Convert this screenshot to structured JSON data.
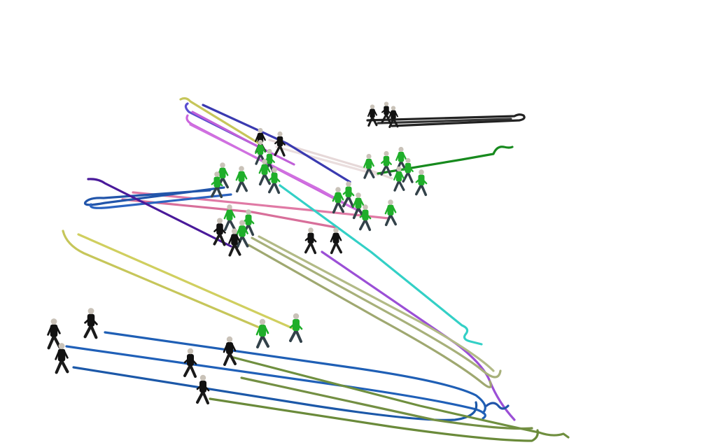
{
  "scene": {
    "background": "#ffffff",
    "agent_colors": {
      "green_shirt": "#1fae2a",
      "black_shirt": "#111111",
      "pants": "#33424a",
      "skin": "#c9c2b8"
    },
    "trajectory_colors": [
      "#1f5fb5",
      "#6f8f3f",
      "#9b4fd6",
      "#33d0c6",
      "#c6c65a",
      "#a7b07a",
      "#e07aa5",
      "#cc66dd",
      "#3a3ab0",
      "#2255aa",
      "#178a1e",
      "#222222",
      "#d8c8c8"
    ]
  }
}
